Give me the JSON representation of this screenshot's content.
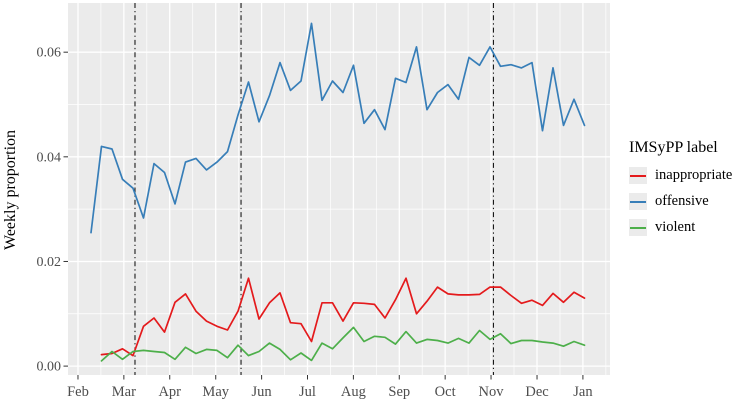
{
  "chart_data": {
    "type": "line",
    "title": "",
    "ylabel": "Weekly proportion",
    "x_unit": "weeks (weekly data points, Feb through Jan)",
    "x_tick_labels": [
      "Feb",
      "Mar",
      "Apr",
      "May",
      "Jun",
      "Jul",
      "Aug",
      "Sep",
      "Oct",
      "Nov",
      "Dec",
      "Jan"
    ],
    "x_ticks_week_pos": [
      -1.24,
      3.13,
      7.5,
      11.88,
      16.25,
      20.62,
      24.99,
      29.36,
      33.73,
      38.1,
      42.48,
      46.85
    ],
    "y_ticks": [
      {
        "label": "0.00",
        "value": 0.0
      },
      {
        "label": "0.02",
        "value": 0.02
      },
      {
        "label": "0.04",
        "value": 0.04
      },
      {
        "label": "0.06",
        "value": 0.06
      }
    ],
    "y_minor_gridlines": [
      0.01,
      0.03,
      0.05
    ],
    "x_domain_weeks": [
      -2.19,
      49.43
    ],
    "y_domain": [
      -0.0017,
      0.0694
    ],
    "grid": true,
    "legend_position": "right",
    "vlines_weeks": [
      4.19,
      14.29,
      38.33
    ],
    "vline_style": "dash-dot vertical reference lines",
    "series": [
      {
        "name": "inappropriate",
        "color": "#E41A1C",
        "values": [
          null,
          0.0022,
          0.0024,
          0.0033,
          0.002,
          0.0076,
          0.0092,
          0.0065,
          0.0122,
          0.0138,
          0.0105,
          0.0086,
          0.0076,
          0.0069,
          0.0105,
          0.0168,
          0.009,
          0.0121,
          0.014,
          0.0083,
          0.0081,
          0.0047,
          0.0121,
          0.0121,
          0.0086,
          0.0121,
          0.012,
          0.0118,
          0.0092,
          0.0127,
          0.0168,
          0.01,
          0.0124,
          0.0151,
          0.0138,
          0.0136,
          0.0136,
          0.0137,
          0.0151,
          0.0151,
          0.0135,
          0.012,
          0.0126,
          0.0116,
          0.0139,
          0.0122,
          0.0141,
          0.013
        ]
      },
      {
        "name": "offensive",
        "color": "#377EB8",
        "values": [
          0.0255,
          0.042,
          0.0415,
          0.0357,
          0.034,
          0.0283,
          0.0387,
          0.037,
          0.031,
          0.039,
          0.0397,
          0.0375,
          0.039,
          0.041,
          0.048,
          0.0543,
          0.0467,
          0.0517,
          0.058,
          0.0527,
          0.0545,
          0.0655,
          0.0508,
          0.0545,
          0.0523,
          0.0575,
          0.0464,
          0.049,
          0.0452,
          0.055,
          0.0542,
          0.061,
          0.049,
          0.0523,
          0.0538,
          0.051,
          0.059,
          0.0575,
          0.061,
          0.0573,
          0.0576,
          0.057,
          0.058,
          0.045,
          0.057,
          0.046,
          0.051,
          0.046
        ]
      },
      {
        "name": "violent",
        "color": "#4DAF4A",
        "values": [
          null,
          0.001,
          0.0028,
          0.0013,
          0.0028,
          0.003,
          0.0028,
          0.0026,
          0.0013,
          0.0036,
          0.0024,
          0.0032,
          0.003,
          0.0016,
          0.004,
          0.002,
          0.0028,
          0.0044,
          0.0032,
          0.0012,
          0.0025,
          0.0011,
          0.0044,
          0.0033,
          0.0054,
          0.0074,
          0.0047,
          0.0057,
          0.0055,
          0.0042,
          0.0066,
          0.0044,
          0.0051,
          0.0049,
          0.0044,
          0.0053,
          0.0044,
          0.0068,
          0.0051,
          0.0062,
          0.0043,
          0.0049,
          0.0049,
          0.0046,
          0.0044,
          0.0038,
          0.0047,
          0.004
        ]
      }
    ]
  },
  "legend": {
    "title": "IMSyPP label",
    "items": [
      {
        "label": "inappropriate",
        "color": "#E41A1C"
      },
      {
        "label": "offensive",
        "color": "#377EB8"
      },
      {
        "label": "violent",
        "color": "#4DAF4A"
      }
    ]
  },
  "colors": {
    "panel_bg": "#EBEBEB",
    "gridline": "#FFFFFF",
    "axis_text": "#4D4D4D",
    "tick_mark": "#333333",
    "vline": "#1A1A1A"
  }
}
